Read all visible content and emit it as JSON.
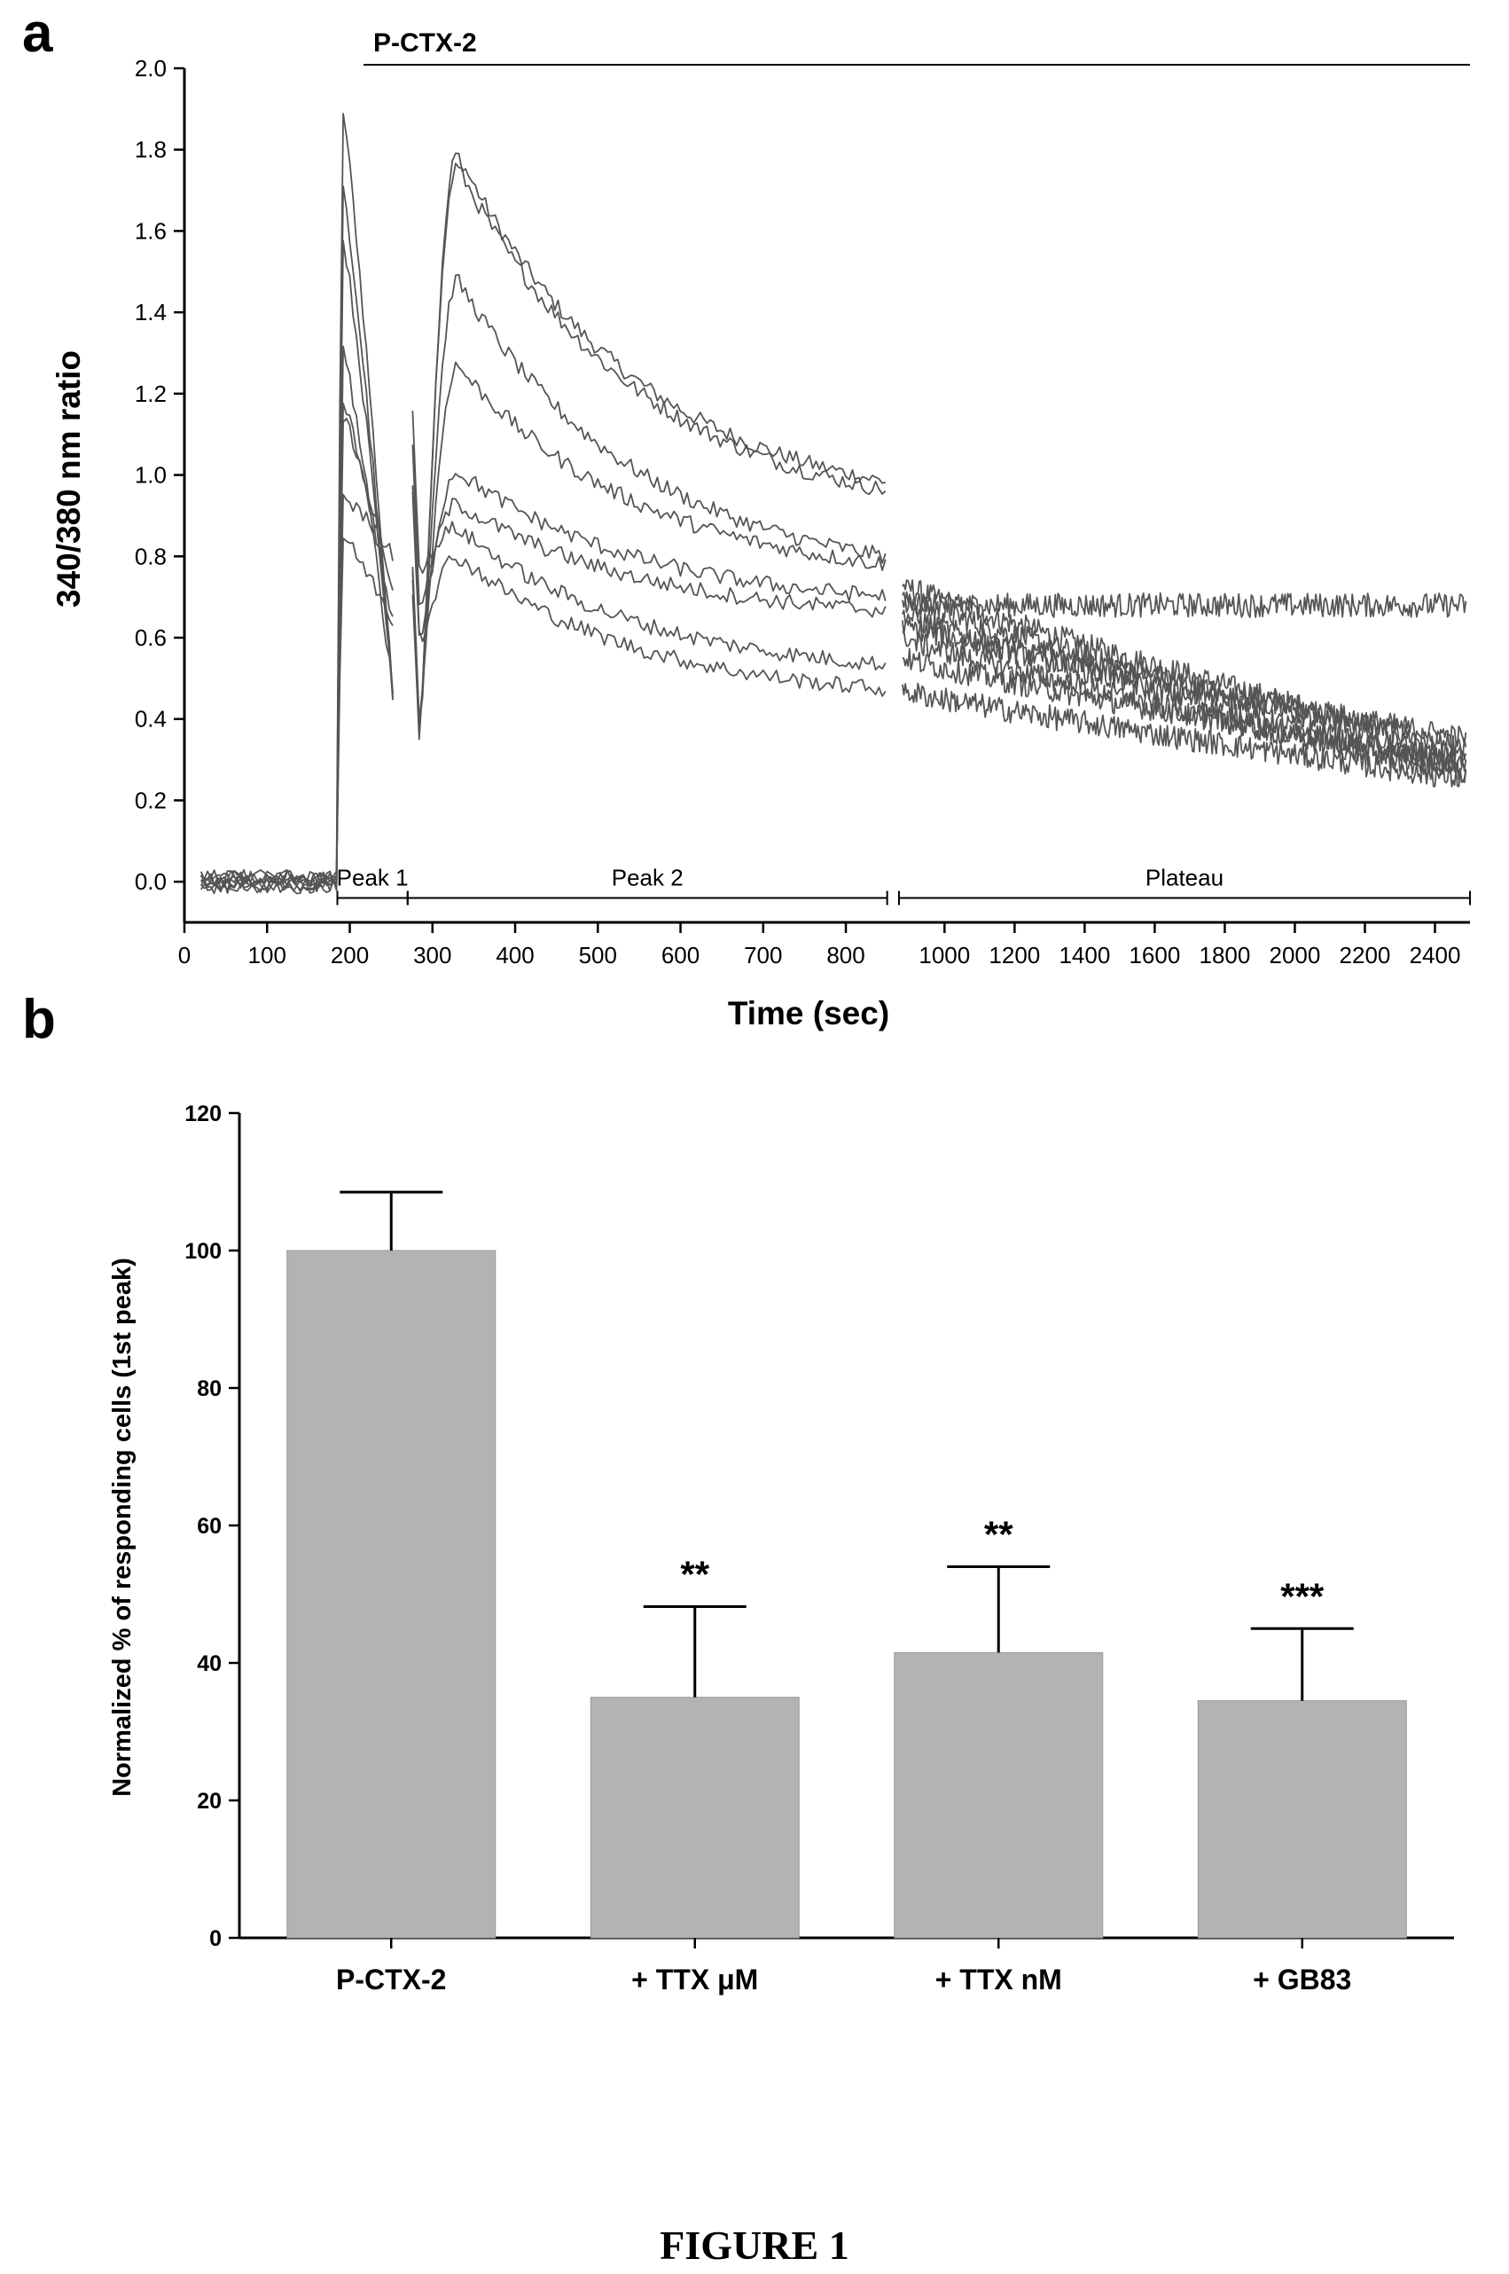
{
  "panel_a": {
    "letter": "a",
    "bar_label": "P-CTX-2",
    "ylabel": "340/380 nm ratio",
    "xlabel": "Time (sec)",
    "segments": [
      "Peak 1",
      "Peak 2",
      "Plateau"
    ]
  },
  "panel_b": {
    "letter": "b",
    "ylabel": "Normalized % of responding cells (1st peak)"
  },
  "figure_caption": "FIGURE 1",
  "chart_data": [
    {
      "type": "line",
      "panel": "a",
      "title": "P-CTX-2",
      "xlabel": "Time (sec)",
      "ylabel": "340/380 nm ratio",
      "xlim": [
        0,
        2500
      ],
      "ylim": [
        -0.1,
        2.0
      ],
      "x_axis_break_at": 860,
      "x_ticks": [
        0,
        100,
        200,
        300,
        400,
        500,
        600,
        700,
        800,
        1000,
        1200,
        1400,
        1600,
        1800,
        2000,
        2200,
        2400
      ],
      "y_ticks": [
        0.0,
        0.2,
        0.4,
        0.6,
        0.8,
        1.0,
        1.2,
        1.4,
        1.6,
        1.8,
        2.0
      ],
      "y_tick_labels": [
        "0.0",
        "0.2",
        "0.4",
        "0.6",
        "0.8",
        "1.0",
        "1.2",
        "1.4",
        "1.6",
        "1.8",
        "2.0"
      ],
      "application_bar": {
        "label": "P-CTX-2",
        "from": 185,
        "to": 2500
      },
      "segments": [
        {
          "label": "Peak 1",
          "from": 185,
          "to": 270
        },
        {
          "label": "Peak 2",
          "from": 270,
          "to": 850
        },
        {
          "label": "Plateau",
          "from": 870,
          "to": 2500
        }
      ],
      "gaps": [
        [
          255,
          275
        ],
        [
          848,
          878
        ]
      ],
      "series": [
        {
          "peak1": 1.92,
          "trough": 0.37,
          "peak2": 1.79,
          "at850": 0.9,
          "plateau_start": 0.73,
          "plateau_end": 0.32
        },
        {
          "peak1": 1.72,
          "trough": 0.39,
          "peak2": 1.76,
          "at850": 0.88,
          "plateau_start": 0.7,
          "plateau_end": 0.3
        },
        {
          "peak1": 1.6,
          "trough": 0.4,
          "peak2": 1.48,
          "at850": 0.73,
          "plateau_start": 0.68,
          "plateau_end": 0.68
        },
        {
          "peak1": 1.33,
          "trough": 0.42,
          "peak2": 1.27,
          "at850": 0.73,
          "plateau_start": 0.66,
          "plateau_end": 0.27
        },
        {
          "peak1": 1.2,
          "trough": 0.6,
          "peak2": 1.01,
          "at850": 0.67,
          "plateau_start": 0.63,
          "plateau_end": 0.35
        },
        {
          "peak1": 1.15,
          "trough": 0.7,
          "peak2": 0.93,
          "at850": 0.64,
          "plateau_start": 0.6,
          "plateau_end": 0.26
        },
        {
          "peak1": 0.95,
          "trough": 0.8,
          "peak2": 0.87,
          "at850": 0.5,
          "plateau_start": 0.55,
          "plateau_end": 0.29
        },
        {
          "peak1": 0.85,
          "trough": 0.63,
          "peak2": 0.8,
          "at850": 0.44,
          "plateau_start": 0.47,
          "plateau_end": 0.25
        }
      ]
    },
    {
      "type": "bar",
      "panel": "b",
      "ylabel": "Normalized % of responding cells (1st peak)",
      "ylim": [
        0,
        120
      ],
      "y_ticks": [
        0,
        20,
        40,
        60,
        80,
        100,
        120
      ],
      "categories": [
        "P-CTX-2",
        "+ TTX μM",
        "+ TTX nM",
        "+ GB83"
      ],
      "values": [
        100,
        35,
        41.5,
        34.5
      ],
      "errors": [
        8.5,
        13.2,
        12.5,
        10.5
      ],
      "significance": [
        "",
        "**",
        "**",
        "***"
      ],
      "bar_color": "#b3b3b3"
    }
  ]
}
